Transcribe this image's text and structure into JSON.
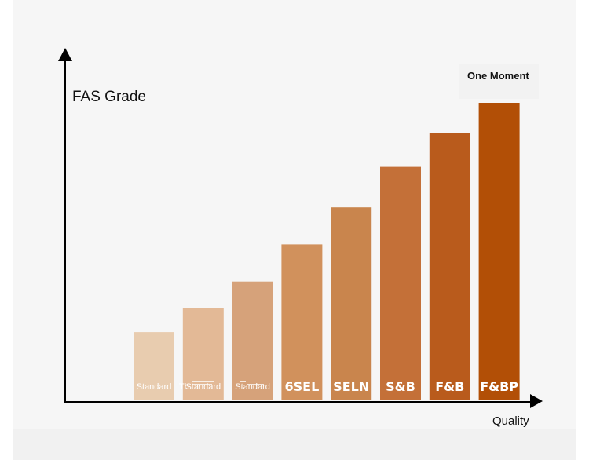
{
  "chart_data": {
    "type": "bar",
    "ylabel": "FAS Grade",
    "xlabel": "Quality",
    "annotation": "One Moment",
    "categories": [
      "Standard",
      "Standard",
      "Standard",
      "6SEL",
      "SELN",
      "S&B",
      "F&B",
      "F&BP"
    ],
    "values": [
      1.0,
      1.35,
      1.75,
      2.3,
      2.85,
      3.45,
      3.95,
      4.4
    ],
    "ylim": [
      0,
      5
    ],
    "grid": false,
    "legend": "none",
    "colors": [
      "#e8ccaf",
      "#e3b996",
      "#d6a27a",
      "#d1915c",
      "#c9854d",
      "#c47038",
      "#b95b1c",
      "#b24f06"
    ],
    "tick_labels": {
      "standard_a": "Standard",
      "standard_b": "Standard",
      "standard_c": "Standard",
      "overlap_text": "Th"
    }
  }
}
